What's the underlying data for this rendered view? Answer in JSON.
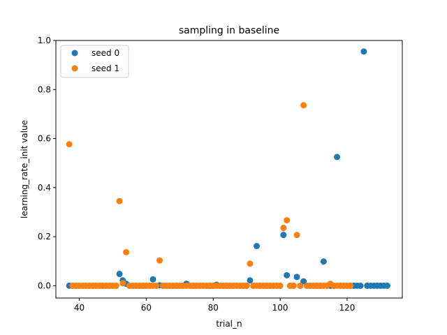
{
  "chart_data": {
    "type": "scatter",
    "title": "sampling in baseline",
    "xlabel": "trial_n",
    "ylabel": "learning_rate_init value",
    "xlim": [
      33,
      136.5
    ],
    "ylim": [
      -0.05,
      1.0
    ],
    "xticks": [
      40,
      60,
      80,
      100,
      120
    ],
    "yticks": [
      0.0,
      0.2,
      0.4,
      0.6,
      0.8,
      1.0
    ],
    "xtick_labels": [
      "40",
      "60",
      "80",
      "100",
      "120"
    ],
    "ytick_labels": [
      "0.0",
      "0.2",
      "0.4",
      "0.6",
      "0.8",
      "1.0"
    ],
    "grid": false,
    "legend_position": "top-left",
    "series": [
      {
        "name": "seed 0",
        "color": "#1f77b4",
        "points": [
          [
            37,
            0.0
          ],
          [
            38,
            0.0
          ],
          [
            39,
            0.0
          ],
          [
            40,
            0.0
          ],
          [
            41,
            0.0
          ],
          [
            42,
            0.0
          ],
          [
            43,
            0.0
          ],
          [
            44,
            0.0
          ],
          [
            45,
            0.0
          ],
          [
            46,
            0.0
          ],
          [
            47,
            0.0
          ],
          [
            48,
            0.0
          ],
          [
            49,
            0.0
          ],
          [
            50,
            0.0
          ],
          [
            51,
            0.0
          ],
          [
            52,
            0.048
          ],
          [
            53,
            0.022
          ],
          [
            54,
            0.008
          ],
          [
            55,
            0.0
          ],
          [
            56,
            0.0
          ],
          [
            57,
            0.0
          ],
          [
            58,
            0.0
          ],
          [
            59,
            0.0
          ],
          [
            60,
            0.0
          ],
          [
            61,
            0.0
          ],
          [
            62,
            0.026
          ],
          [
            63,
            0.0
          ],
          [
            64,
            0.002
          ],
          [
            65,
            0.0
          ],
          [
            66,
            0.0
          ],
          [
            67,
            0.0
          ],
          [
            68,
            0.0
          ],
          [
            69,
            0.0
          ],
          [
            70,
            0.0
          ],
          [
            71,
            0.0
          ],
          [
            72,
            0.008
          ],
          [
            73,
            0.0
          ],
          [
            74,
            0.0
          ],
          [
            75,
            0.0
          ],
          [
            76,
            0.0
          ],
          [
            77,
            0.0
          ],
          [
            78,
            0.0
          ],
          [
            79,
            0.0
          ],
          [
            80,
            0.0
          ],
          [
            81,
            0.004
          ],
          [
            82,
            0.0
          ],
          [
            83,
            0.0
          ],
          [
            84,
            0.0
          ],
          [
            85,
            0.0
          ],
          [
            86,
            0.0
          ],
          [
            87,
            0.0
          ],
          [
            88,
            0.0
          ],
          [
            89,
            0.0
          ],
          [
            90,
            0.0
          ],
          [
            91,
            0.022
          ],
          [
            92,
            0.0
          ],
          [
            93,
            0.162
          ],
          [
            94,
            0.0
          ],
          [
            95,
            0.0
          ],
          [
            96,
            0.0
          ],
          [
            97,
            0.0
          ],
          [
            98,
            0.0
          ],
          [
            99,
            0.0
          ],
          [
            100,
            0.0
          ],
          [
            101,
            0.207
          ],
          [
            102,
            0.043
          ],
          [
            103,
            0.0
          ],
          [
            104,
            0.0
          ],
          [
            105,
            0.036
          ],
          [
            106,
            0.0
          ],
          [
            107,
            0.018
          ],
          [
            108,
            0.0
          ],
          [
            109,
            0.0
          ],
          [
            110,
            0.0
          ],
          [
            111,
            0.0
          ],
          [
            112,
            0.0
          ],
          [
            113,
            0.099
          ],
          [
            114,
            0.0
          ],
          [
            115,
            0.0
          ],
          [
            116,
            0.0
          ],
          [
            117,
            0.525
          ],
          [
            118,
            0.0
          ],
          [
            119,
            0.0
          ],
          [
            120,
            0.0
          ],
          [
            121,
            0.0
          ],
          [
            122,
            0.0
          ],
          [
            123,
            0.0
          ],
          [
            124,
            0.0
          ],
          [
            125,
            0.955
          ],
          [
            126,
            0.0
          ],
          [
            127,
            0.0
          ],
          [
            128,
            0.0
          ],
          [
            129,
            0.0
          ],
          [
            130,
            0.0
          ],
          [
            131,
            0.0
          ],
          [
            132,
            0.0
          ]
        ]
      },
      {
        "name": "seed 1",
        "color": "#ff7f0e",
        "points": [
          [
            37,
            0.577
          ],
          [
            38,
            0.0
          ],
          [
            39,
            0.0
          ],
          [
            40,
            0.0
          ],
          [
            41,
            0.0
          ],
          [
            42,
            0.0
          ],
          [
            43,
            0.0
          ],
          [
            44,
            0.0
          ],
          [
            45,
            0.0
          ],
          [
            46,
            0.0
          ],
          [
            47,
            0.0
          ],
          [
            48,
            0.0
          ],
          [
            49,
            0.0
          ],
          [
            50,
            0.0
          ],
          [
            51,
            0.0
          ],
          [
            52,
            0.345
          ],
          [
            53,
            0.01
          ],
          [
            54,
            0.137
          ],
          [
            55,
            0.0
          ],
          [
            56,
            0.0
          ],
          [
            57,
            0.0
          ],
          [
            58,
            0.0
          ],
          [
            59,
            0.0
          ],
          [
            60,
            0.0
          ],
          [
            61,
            0.0
          ],
          [
            62,
            0.0
          ],
          [
            63,
            0.0
          ],
          [
            64,
            0.103
          ],
          [
            65,
            0.0
          ],
          [
            66,
            0.0
          ],
          [
            67,
            0.0
          ],
          [
            68,
            0.0
          ],
          [
            69,
            0.0
          ],
          [
            70,
            0.0
          ],
          [
            71,
            0.0
          ],
          [
            72,
            0.0
          ],
          [
            73,
            0.0
          ],
          [
            74,
            0.0
          ],
          [
            75,
            0.0
          ],
          [
            76,
            0.0
          ],
          [
            77,
            0.0
          ],
          [
            78,
            0.0
          ],
          [
            79,
            0.0
          ],
          [
            80,
            0.0
          ],
          [
            81,
            0.0
          ],
          [
            82,
            0.0
          ],
          [
            83,
            0.0
          ],
          [
            84,
            0.0
          ],
          [
            85,
            0.0
          ],
          [
            86,
            0.0
          ],
          [
            87,
            0.0
          ],
          [
            88,
            0.0
          ],
          [
            89,
            0.0
          ],
          [
            90,
            0.0
          ],
          [
            91,
            0.09
          ],
          [
            92,
            0.0
          ],
          [
            93,
            0.0
          ],
          [
            94,
            0.0
          ],
          [
            95,
            0.0
          ],
          [
            96,
            0.0
          ],
          [
            97,
            0.0
          ],
          [
            98,
            0.0
          ],
          [
            99,
            0.0
          ],
          [
            100,
            0.0
          ],
          [
            101,
            0.236
          ],
          [
            102,
            0.267
          ],
          [
            103,
            0.0
          ],
          [
            104,
            0.0
          ],
          [
            105,
            0.207
          ],
          [
            106,
            0.0
          ],
          [
            107,
            0.736
          ],
          [
            108,
            0.0
          ],
          [
            109,
            0.0
          ],
          [
            110,
            0.0
          ],
          [
            111,
            0.0
          ],
          [
            112,
            0.0
          ],
          [
            113,
            0.0
          ],
          [
            114,
            0.0
          ],
          [
            115,
            0.008
          ],
          [
            116,
            0.0
          ],
          [
            117,
            0.0
          ],
          [
            118,
            0.0
          ],
          [
            119,
            0.0
          ],
          [
            120,
            0.0
          ],
          [
            121,
            0.0
          ]
        ]
      }
    ]
  }
}
